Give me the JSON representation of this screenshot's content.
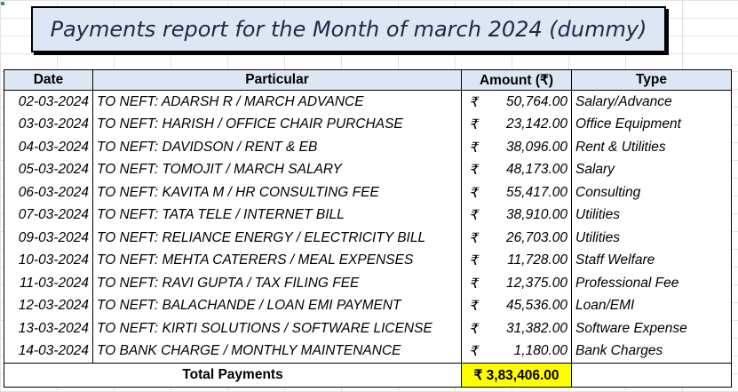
{
  "title": "Payments report for the Month of march 2024 (dummy)",
  "headers": {
    "date": "Date",
    "particular": "Particular",
    "amount": "Amount (₹)",
    "type": "Type"
  },
  "currency_symbol": "₹",
  "rows": [
    {
      "date": "02-03-2024",
      "particular": "TO NEFT: ADARSH R / MARCH ADVANCE",
      "amount": "50,764.00",
      "type": "Salary/Advance"
    },
    {
      "date": "03-03-2024",
      "particular": "TO NEFT: HARISH / OFFICE CHAIR PURCHASE",
      "amount": "23,142.00",
      "type": "Office Equipment"
    },
    {
      "date": "04-03-2024",
      "particular": "TO NEFT: DAVIDSON / RENT & EB",
      "amount": "38,096.00",
      "type": "Rent & Utilities"
    },
    {
      "date": "05-03-2024",
      "particular": "TO NEFT: TOMOJIT / MARCH SALARY",
      "amount": "48,173.00",
      "type": "Salary"
    },
    {
      "date": "06-03-2024",
      "particular": "TO NEFT: KAVITA M / HR CONSULTING FEE",
      "amount": "55,417.00",
      "type": "Consulting"
    },
    {
      "date": "07-03-2024",
      "particular": "TO NEFT: TATA TELE / INTERNET BILL",
      "amount": "38,910.00",
      "type": "Utilities"
    },
    {
      "date": "09-03-2024",
      "particular": "TO NEFT: RELIANCE ENERGY / ELECTRICITY BILL",
      "amount": "26,703.00",
      "type": "Utilities"
    },
    {
      "date": "10-03-2024",
      "particular": "TO NEFT: MEHTA CATERERS / MEAL EXPENSES",
      "amount": "11,728.00",
      "type": "Staff Welfare"
    },
    {
      "date": "11-03-2024",
      "particular": "TO NEFT: RAVI GUPTA / TAX FILING FEE",
      "amount": "12,375.00",
      "type": "Professional Fee"
    },
    {
      "date": "12-03-2024",
      "particular": "TO NEFT: BALACHANDE / LOAN EMI PAYMENT",
      "amount": "45,536.00",
      "type": "Loan/EMI"
    },
    {
      "date": "13-03-2024",
      "particular": "TO NEFT: KIRTI SOLUTIONS / SOFTWARE LICENSE",
      "amount": "31,382.00",
      "type": "Software Expense"
    },
    {
      "date": "14-03-2024",
      "particular": "TO BANK CHARGE / MONTHLY MAINTENANCE",
      "amount": "1,180.00",
      "type": "Bank Charges"
    }
  ],
  "total": {
    "label": "Total Payments",
    "amount": "₹ 3,83,406.00"
  },
  "colors": {
    "header_bg": "#dde7f4",
    "total_highlight": "#ffff00",
    "border": "#000000"
  }
}
